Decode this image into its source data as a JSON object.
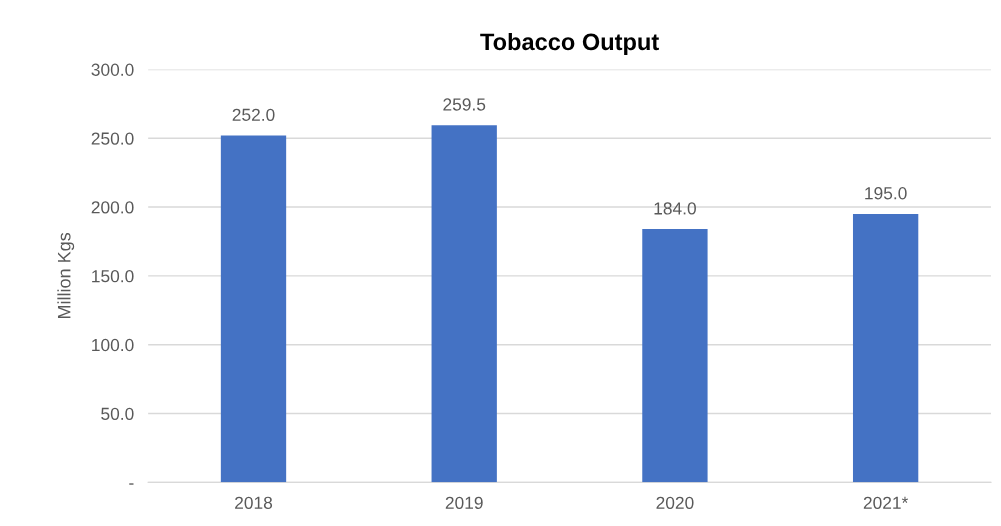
{
  "chart_data": {
    "type": "bar",
    "title": "Tobacco Output",
    "ylabel": "Million Kgs",
    "categories": [
      "2018",
      "2019",
      "2020",
      "2021*"
    ],
    "values": [
      252.0,
      259.5,
      184.0,
      195.0
    ],
    "color": "#4472c4",
    "value_labels": [
      "252.0",
      "259.5",
      "184.0",
      "195.0"
    ],
    "ylim": [
      0,
      300
    ],
    "yticks": [
      {
        "value": 0,
        "label": "-"
      },
      {
        "value": 50,
        "label": "50.0"
      },
      {
        "value": 100,
        "label": "100.0"
      },
      {
        "value": 150,
        "label": "150.0"
      },
      {
        "value": 200,
        "label": "200.0"
      },
      {
        "value": 250,
        "label": "250.0"
      },
      {
        "value": 300,
        "label": "300.0"
      }
    ],
    "grid": "y",
    "legend": false
  }
}
